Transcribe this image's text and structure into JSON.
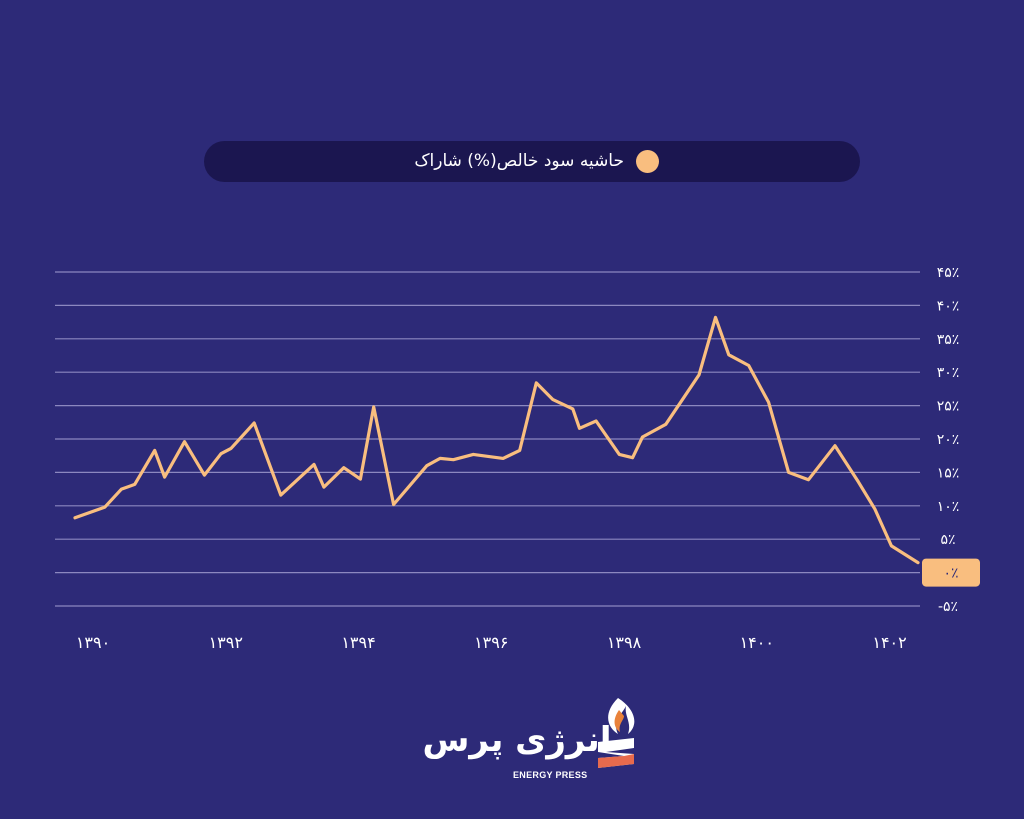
{
  "chart_data": {
    "type": "line",
    "title": "",
    "legend": {
      "placement": "top",
      "entries": [
        "حاشیه سود خالص(%) شاراک"
      ]
    },
    "series": [
      {
        "name": "حاشیه سود خالص(%) شاراک",
        "color": "#f9be7f",
        "points": [
          [
            1390.0,
            8.2
          ],
          [
            1390.45,
            9.8
          ],
          [
            1390.7,
            12.5
          ],
          [
            1390.9,
            13.2
          ],
          [
            1391.2,
            18.3
          ],
          [
            1391.35,
            14.3
          ],
          [
            1391.65,
            19.6
          ],
          [
            1391.95,
            14.6
          ],
          [
            1392.2,
            17.8
          ],
          [
            1392.35,
            18.6
          ],
          [
            1392.7,
            22.4
          ],
          [
            1393.1,
            11.6
          ],
          [
            1393.6,
            16.2
          ],
          [
            1393.75,
            12.8
          ],
          [
            1394.05,
            15.7
          ],
          [
            1394.3,
            14.0
          ],
          [
            1394.5,
            24.8
          ],
          [
            1394.8,
            10.2
          ],
          [
            1395.3,
            16.0
          ],
          [
            1395.5,
            17.1
          ],
          [
            1395.7,
            16.9
          ],
          [
            1396.0,
            17.7
          ],
          [
            1396.45,
            17.1
          ],
          [
            1396.7,
            18.3
          ],
          [
            1396.95,
            28.4
          ],
          [
            1397.2,
            25.9
          ],
          [
            1397.5,
            24.5
          ],
          [
            1397.6,
            21.6
          ],
          [
            1397.85,
            22.7
          ],
          [
            1398.2,
            17.7
          ],
          [
            1398.4,
            17.2
          ],
          [
            1398.55,
            20.3
          ],
          [
            1398.9,
            22.2
          ],
          [
            1399.4,
            29.6
          ],
          [
            1399.65,
            38.2
          ],
          [
            1399.85,
            32.6
          ],
          [
            1400.15,
            31.0
          ],
          [
            1400.45,
            25.5
          ],
          [
            1400.75,
            15.0
          ],
          [
            1401.05,
            13.9
          ],
          [
            1401.45,
            19.0
          ],
          [
            1401.8,
            13.6
          ],
          [
            1402.05,
            9.5
          ],
          [
            1402.3,
            4.0
          ],
          [
            1402.7,
            1.5
          ]
        ]
      }
    ],
    "y_axis": {
      "position": "right",
      "ylim": [
        -5,
        45
      ],
      "ticks": [
        45,
        40,
        35,
        30,
        25,
        20,
        15,
        10,
        5,
        0,
        -5
      ],
      "tick_labels": [
        "۴۵٪",
        "۴۰٪",
        "۳۵٪",
        "۳۰٪",
        "۲۵٪",
        "۲۰٪",
        "۱۵٪",
        "۱۰٪",
        "۵٪",
        "۰٪",
        "-۵٪"
      ],
      "highlight_tick": 0,
      "highlight_color": "#f9be7f"
    },
    "x_axis": {
      "ticks": [
        1390,
        1392,
        1394,
        1396,
        1398,
        1400,
        1402
      ],
      "tick_labels": [
        "۱۳۹۰",
        "۱۳۹۲",
        "۱۳۹۴",
        "۱۳۹۶",
        "۱۳۹۸",
        "۱۴۰۰",
        "۱۴۰۲"
      ]
    },
    "grid": true
  },
  "legend_label": "حاشیه سود خالص(%) شاراک",
  "brand": {
    "name": "انرژی پرس",
    "subtitle": "ENERGY PRESS"
  },
  "colors": {
    "background": "#2d2a78",
    "legend_bg": "#1b1650",
    "grid": "#8c88c0",
    "line": "#f9be7f",
    "text": "#ffffff"
  }
}
